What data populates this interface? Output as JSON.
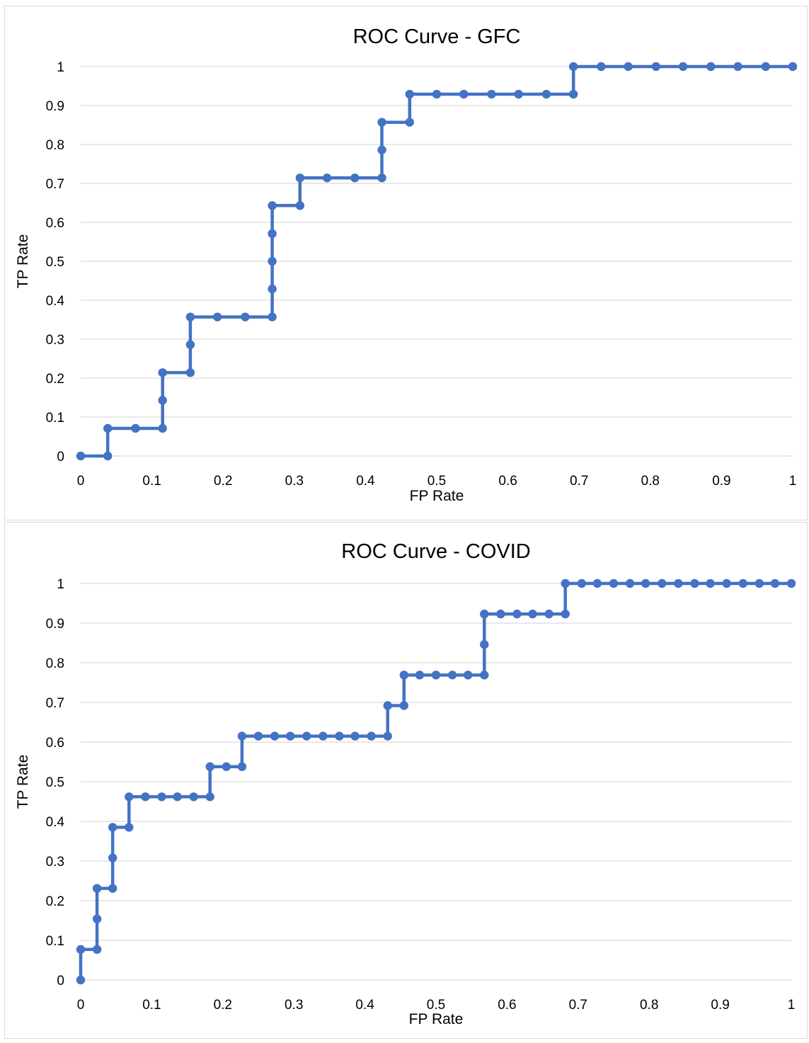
{
  "chart_data": [
    {
      "type": "line",
      "title": "ROC Curve - GFC",
      "xlabel": "FP Rate",
      "ylabel": "TP Rate",
      "xlim": [
        0,
        1
      ],
      "ylim": [
        0,
        1
      ],
      "xticks": [
        "0",
        "0.1",
        "0.2",
        "0.3",
        "0.4",
        "0.5",
        "0.6",
        "0.7",
        "0.8",
        "0.9",
        "1"
      ],
      "yticks": [
        "0",
        "0.1",
        "0.2",
        "0.3",
        "0.4",
        "0.5",
        "0.6",
        "0.7",
        "0.8",
        "0.9",
        "1"
      ],
      "grid": "horizontal",
      "line_color": "#4472c4",
      "title_color": "#000000",
      "series": [
        {
          "x": [
            0,
            0.038,
            0.038,
            0.077,
            0.115,
            0.115,
            0.115,
            0.154,
            0.154,
            0.154,
            0.192,
            0.231,
            0.269,
            0.269,
            0.269,
            0.269,
            0.269,
            0.308,
            0.308,
            0.346,
            0.385,
            0.423,
            0.423,
            0.423,
            0.462,
            0.462,
            0.5,
            0.538,
            0.577,
            0.615,
            0.654,
            0.692,
            0.692,
            0.731,
            0.769,
            0.808,
            0.846,
            0.885,
            0.923,
            0.962,
            1.0
          ],
          "y": [
            0,
            0,
            0.071,
            0.071,
            0.071,
            0.143,
            0.214,
            0.214,
            0.286,
            0.357,
            0.357,
            0.357,
            0.357,
            0.429,
            0.5,
            0.571,
            0.643,
            0.643,
            0.714,
            0.714,
            0.714,
            0.714,
            0.786,
            0.857,
            0.857,
            0.929,
            0.929,
            0.929,
            0.929,
            0.929,
            0.929,
            0.929,
            1.0,
            1.0,
            1.0,
            1.0,
            1.0,
            1.0,
            1.0,
            1.0,
            1.0
          ]
        }
      ]
    },
    {
      "type": "line",
      "title": "ROC Curve - COVID",
      "xlabel": "FP Rate",
      "ylabel": "TP Rate",
      "xlim": [
        0,
        1
      ],
      "ylim": [
        0,
        1
      ],
      "xticks": [
        "0",
        "0.1",
        "0.2",
        "0.3",
        "0.4",
        "0.5",
        "0.6",
        "0.7",
        "0.8",
        "0.9",
        "1"
      ],
      "yticks": [
        "0",
        "0.1",
        "0.2",
        "0.3",
        "0.4",
        "0.5",
        "0.6",
        "0.7",
        "0.8",
        "0.9",
        "1"
      ],
      "grid": "horizontal",
      "line_color": "#4472c4",
      "title_color": "#595959",
      "series": [
        {
          "x": [
            0,
            0,
            0.023,
            0.023,
            0.023,
            0.045,
            0.045,
            0.045,
            0.068,
            0.068,
            0.091,
            0.114,
            0.136,
            0.159,
            0.182,
            0.182,
            0.205,
            0.227,
            0.227,
            0.25,
            0.273,
            0.295,
            0.318,
            0.341,
            0.364,
            0.386,
            0.409,
            0.432,
            0.432,
            0.455,
            0.455,
            0.477,
            0.5,
            0.523,
            0.545,
            0.568,
            0.568,
            0.568,
            0.591,
            0.614,
            0.636,
            0.659,
            0.682,
            0.682,
            0.705,
            0.727,
            0.75,
            0.773,
            0.795,
            0.818,
            0.841,
            0.864,
            0.886,
            0.909,
            0.932,
            0.955,
            0.977,
            1.0
          ],
          "y": [
            0,
            0.077,
            0.077,
            0.154,
            0.231,
            0.231,
            0.308,
            0.385,
            0.385,
            0.462,
            0.462,
            0.462,
            0.462,
            0.462,
            0.462,
            0.538,
            0.538,
            0.538,
            0.615,
            0.615,
            0.615,
            0.615,
            0.615,
            0.615,
            0.615,
            0.615,
            0.615,
            0.615,
            0.692,
            0.692,
            0.769,
            0.769,
            0.769,
            0.769,
            0.769,
            0.769,
            0.846,
            0.923,
            0.923,
            0.923,
            0.923,
            0.923,
            0.923,
            1.0,
            1.0,
            1.0,
            1.0,
            1.0,
            1.0,
            1.0,
            1.0,
            1.0,
            1.0,
            1.0,
            1.0,
            1.0,
            1.0,
            1.0
          ]
        }
      ]
    }
  ]
}
